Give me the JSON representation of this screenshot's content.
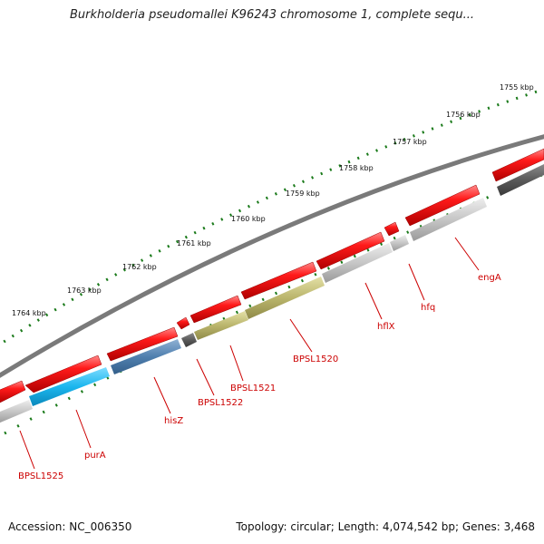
{
  "title": "Burkholderia pseudomallei K96243 chromosome 1, complete sequ...",
  "accession": "Accession: NC_006350",
  "topology": "Topology: circular; Length: 4,074,542 bp; Genes: 3,468",
  "colors": {
    "forward_gene": "#e00000",
    "backbone": "#777777",
    "ticks": "#1a7a1a",
    "label": "#cc0000",
    "cds_gray": "#bfbfbf",
    "cds_dark": "#555555",
    "cds_cyan": "#19b6ec",
    "cds_steel": "#4f7fae",
    "cds_olive": "#b8b46a"
  },
  "ruler": {
    "labels": [
      "1755 kbp",
      "1756 kbp",
      "1757 kbp",
      "1758 kbp",
      "1759 kbp",
      "1760 kbp",
      "1761 kbp",
      "1762 kbp",
      "1763 kbp",
      "1764 kbp"
    ]
  },
  "genes": [
    {
      "name": "BPSL1525",
      "color": "gray"
    },
    {
      "name": "purA",
      "color": "cyan"
    },
    {
      "name": "hisZ",
      "color": "steel"
    },
    {
      "name": "BPSL1522",
      "color": "dark"
    },
    {
      "name": "BPSL1521",
      "color": "olive"
    },
    {
      "name": "BPSL1520",
      "color": "olive"
    },
    {
      "name": "hflX",
      "color": "gray"
    },
    {
      "name": "hfq",
      "color": "gray"
    },
    {
      "name": "engA",
      "color": "gray"
    },
    {
      "name": "",
      "color": "dark"
    }
  ]
}
